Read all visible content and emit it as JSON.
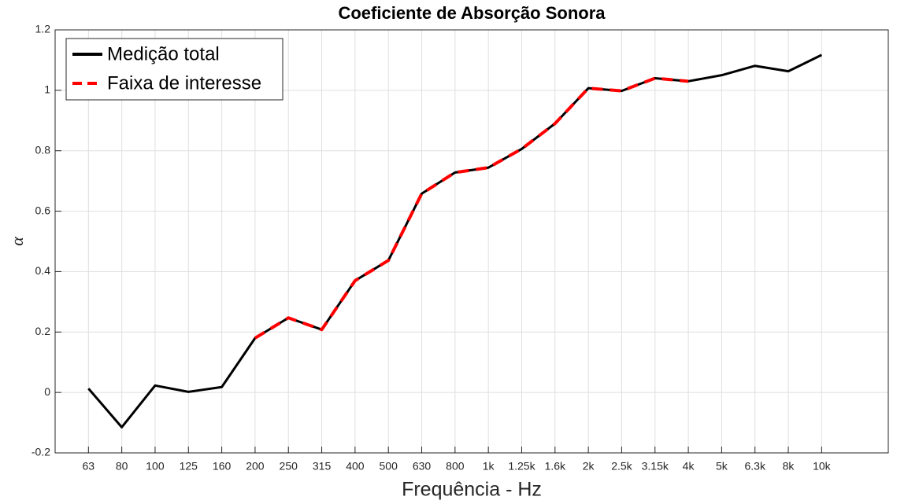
{
  "chart_data": {
    "type": "line",
    "title": "Coeficiente de Absorção Sonora",
    "xlabel": "Frequência - Hz",
    "ylabel": "α",
    "categories": [
      "63",
      "80",
      "100",
      "125",
      "160",
      "200",
      "250",
      "315",
      "400",
      "500",
      "630",
      "800",
      "1k",
      "1.25k",
      "1.6k",
      "2k",
      "2.5k",
      "3.15k",
      "4k",
      "5k",
      "6.3k",
      "8k",
      "10k"
    ],
    "series": [
      {
        "name": "Medição total",
        "color": "#000000",
        "linestyle": "solid",
        "values": [
          0.013,
          -0.115,
          0.023,
          0.002,
          0.018,
          0.18,
          0.247,
          0.208,
          0.37,
          0.437,
          0.658,
          0.728,
          0.744,
          0.806,
          0.89,
          1.007,
          0.998,
          1.04,
          1.03,
          1.05,
          1.081,
          1.063,
          1.117
        ]
      },
      {
        "name": "Faixa de interesse",
        "color": "#ff0000",
        "linestyle": "dashed",
        "values": [
          null,
          null,
          null,
          null,
          null,
          0.18,
          0.247,
          0.208,
          0.37,
          0.437,
          0.658,
          0.728,
          0.744,
          0.806,
          0.89,
          1.007,
          0.998,
          1.04,
          1.03,
          null,
          null,
          null,
          null
        ]
      }
    ],
    "ylim": [
      -0.2,
      1.2
    ],
    "yticks": [
      -0.2,
      0,
      0.2,
      0.4,
      0.6,
      0.8,
      1,
      1.2
    ],
    "grid": true,
    "legend": "upper left"
  }
}
